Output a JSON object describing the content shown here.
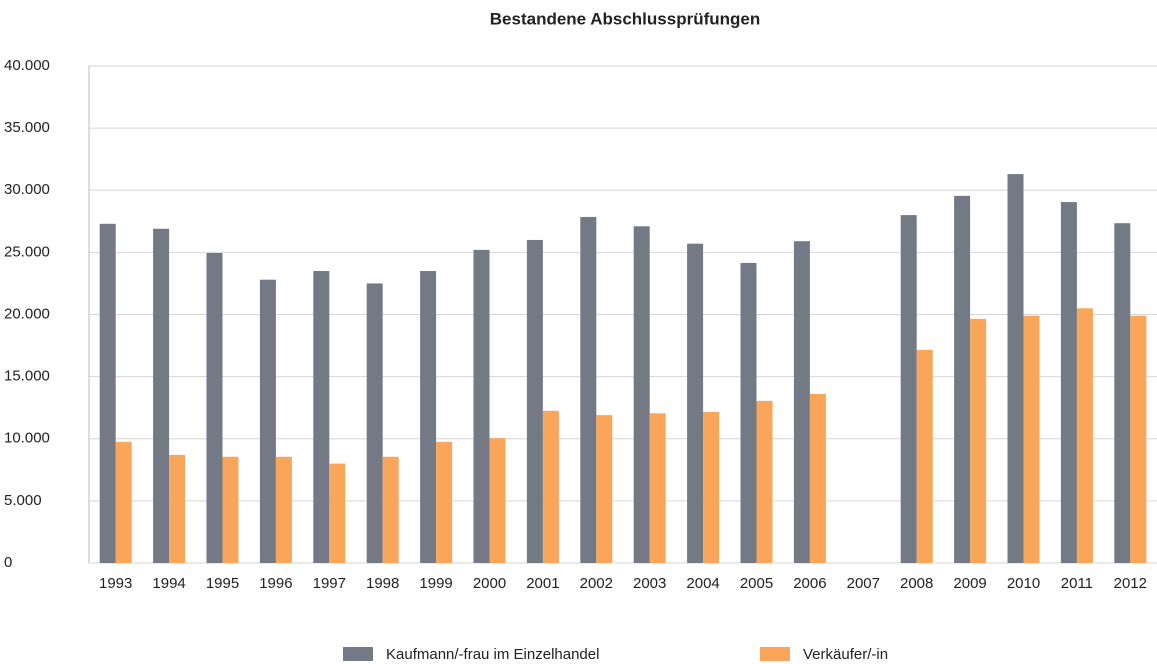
{
  "chart_data": {
    "type": "bar",
    "title": "Bestandene Abschlussprüfungen",
    "categories": [
      "1993",
      "1994",
      "1995",
      "1996",
      "1997",
      "1998",
      "1999",
      "2000",
      "2001",
      "2002",
      "2003",
      "2004",
      "2005",
      "2006",
      "2007",
      "2008",
      "2009",
      "2010",
      "2011",
      "2012"
    ],
    "series": [
      {
        "name": "Kaufmann/-frau im Einzelhandel",
        "color": "#737a86",
        "values": [
          27300,
          26900,
          24950,
          22800,
          23500,
          22500,
          23500,
          25200,
          26000,
          27850,
          27100,
          25700,
          24150,
          25900,
          null,
          28000,
          29550,
          31300,
          29050,
          27350
        ]
      },
      {
        "name": "Verkäufer/-in",
        "color": "#f9a55a",
        "values": [
          9750,
          8700,
          8550,
          8550,
          8000,
          8550,
          9750,
          10050,
          12250,
          11900,
          12050,
          12150,
          13050,
          13600,
          null,
          17150,
          19650,
          19900,
          20500,
          19900
        ]
      }
    ],
    "ylim": [
      0,
      40000
    ],
    "yticks": [
      0,
      {
        "value": 5000,
        "label": "5.000"
      },
      {
        "value": 10000,
        "label": "10.000"
      },
      {
        "value": 15000,
        "label": "15.000"
      },
      {
        "value": 20000,
        "label": "20.000"
      },
      {
        "value": 25000,
        "label": "25.000"
      },
      {
        "value": 30000,
        "label": "30.000"
      },
      {
        "value": 35000,
        "label": "35.000"
      },
      {
        "value": 40000,
        "label": "40.000"
      }
    ],
    "grid": true,
    "legend": "bottom"
  }
}
